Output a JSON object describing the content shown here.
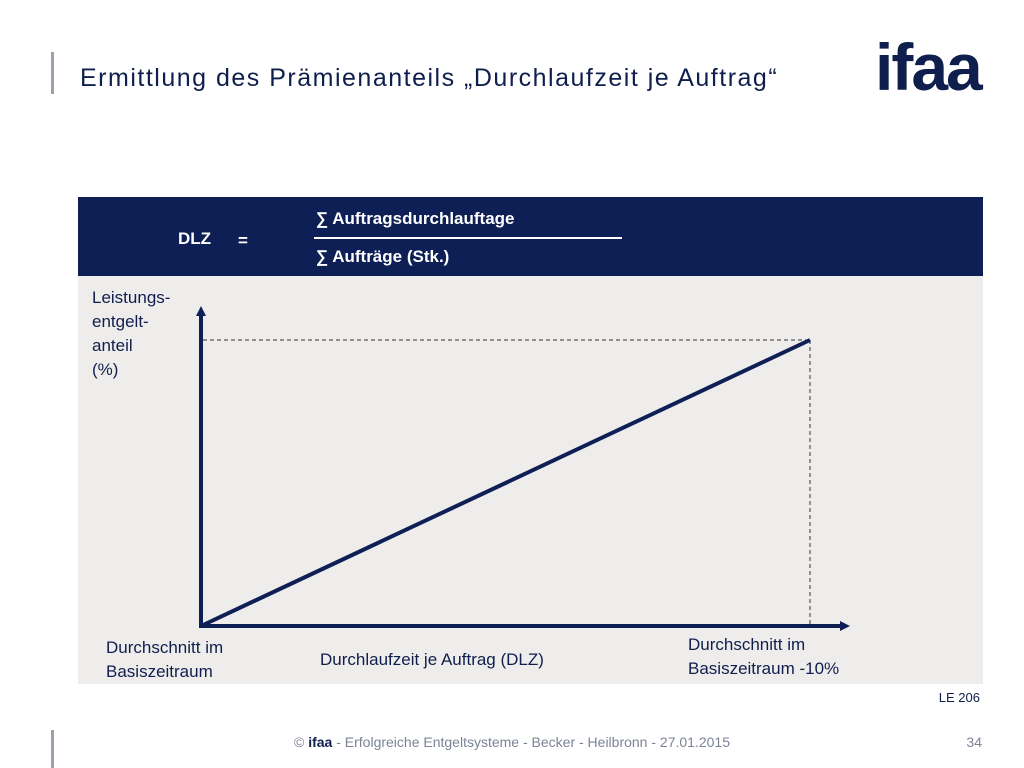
{
  "slide": {
    "title": "Ermittlung des Prämienanteils „Durchlaufzeit je Auftrag“",
    "logo_text": "ifaa",
    "reference_code": "LE 206",
    "page_number": "34"
  },
  "formula": {
    "lhs": "DLZ",
    "equals": "=",
    "numerator": "∑ Auftragsdurchlauftage",
    "denominator": "∑ Aufträge (Stk.)"
  },
  "diagram": {
    "y_axis_label": "Leistungs-\nentgelt-\nanteil\n(%)",
    "x_axis_label": "Durchlaufzeit je Auftrag (DLZ)",
    "x_start_label": "Durchschnitt im\nBasiszeitraum",
    "x_end_label": "Durchschnitt im\nBasiszeitraum -10%"
  },
  "footer": {
    "copyright": "© ",
    "brand": "ifaa",
    "text": " - Erfolgreiche Entgeltsysteme - Becker - Heilbronn - 27.01.2015"
  },
  "colors": {
    "navy": "#0d1f55",
    "panel": "#efecec",
    "footer_gray": "#7b8396"
  }
}
